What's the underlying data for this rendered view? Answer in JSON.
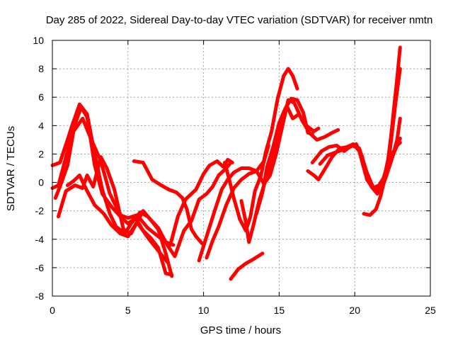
{
  "chart_data": {
    "type": "scatter",
    "title": "Day 285 of 2022, Sidereal Day-to-day VTEC variation (SDTVAR) for receiver nmtn",
    "xlabel": "GPS time / hours",
    "ylabel": "SDTVAR / TECUs",
    "xlim": [
      0,
      25
    ],
    "ylim": [
      -8,
      10
    ],
    "x_ticks": [
      "0",
      "5",
      "10",
      "15",
      "20",
      "25"
    ],
    "y_ticks": [
      "-8",
      "-6",
      "-4",
      "-2",
      "0",
      "2",
      "4",
      "6",
      "8",
      "10"
    ],
    "grid": true,
    "marker": "+",
    "color": "#ff0000",
    "series": [
      {
        "name": "s1",
        "points": [
          [
            0,
            1.2
          ],
          [
            0.5,
            1.4
          ],
          [
            1.0,
            3.0
          ],
          [
            1.3,
            4.0
          ],
          [
            1.8,
            5.5
          ],
          [
            2.3,
            4.8
          ],
          [
            2.8,
            2.0
          ],
          [
            3.3,
            -0.5
          ],
          [
            3.8,
            -2.2
          ],
          [
            4.2,
            -3.1
          ],
          [
            4.8,
            -3.6
          ],
          [
            5.2,
            -2.9
          ],
          [
            5.8,
            -2.1
          ],
          [
            6.3,
            -2.4
          ],
          [
            7.0,
            -3.2
          ],
          [
            7.6,
            -4.4
          ],
          [
            8.1,
            -5.2
          ],
          [
            8.7,
            -3.4
          ],
          [
            9.2,
            -2.7
          ],
          [
            9.7,
            -1.2
          ],
          [
            10.2,
            -0.8
          ],
          [
            10.6,
            -0.3
          ],
          [
            11.0,
            0.5
          ],
          [
            11.5,
            1.0
          ],
          [
            11.8,
            1.4
          ]
        ]
      },
      {
        "name": "s2",
        "points": [
          [
            0,
            -0.4
          ],
          [
            0.4,
            -0.2
          ],
          [
            0.9,
            1.8
          ],
          [
            1.4,
            3.8
          ],
          [
            1.9,
            5.3
          ],
          [
            2.3,
            4.6
          ],
          [
            2.8,
            1.2
          ],
          [
            3.3,
            -0.8
          ],
          [
            3.9,
            -1.7
          ],
          [
            4.5,
            -2.4
          ],
          [
            5.0,
            -2.9
          ],
          [
            5.5,
            -2.5
          ],
          [
            6.0,
            -3.4
          ],
          [
            6.5,
            -3.9
          ],
          [
            7.0,
            -4.6
          ],
          [
            7.5,
            -6.4
          ],
          [
            7.9,
            -6.5
          ]
        ]
      },
      {
        "name": "s3",
        "points": [
          [
            0.2,
            -1.1
          ],
          [
            0.5,
            -0.3
          ],
          [
            1.0,
            1.2
          ],
          [
            1.4,
            3.6
          ],
          [
            2.0,
            4.5
          ],
          [
            2.5,
            3.2
          ],
          [
            3.2,
            1.5
          ],
          [
            3.8,
            -0.8
          ],
          [
            4.5,
            -2.3
          ],
          [
            5.0,
            -2.5
          ],
          [
            5.6,
            -2.3
          ],
          [
            6.3,
            -3.2
          ],
          [
            7.0,
            -3.8
          ],
          [
            7.5,
            -4.2
          ],
          [
            8.0,
            -4.4
          ]
        ]
      },
      {
        "name": "s4",
        "points": [
          [
            0.4,
            -2.4
          ],
          [
            0.9,
            -0.6
          ],
          [
            1.5,
            -0.2
          ],
          [
            2.0,
            -0.4
          ],
          [
            2.3,
            0.5
          ],
          [
            2.7,
            -0.3
          ],
          [
            3.2,
            1.8
          ],
          [
            3.6,
            1.0
          ],
          [
            4.1,
            -0.5
          ],
          [
            4.7,
            -3.3
          ],
          [
            5.2,
            -3.6
          ],
          [
            5.5,
            -3.0
          ],
          [
            6.0,
            -2.0
          ],
          [
            6.4,
            -2.5
          ],
          [
            7.0,
            -3.3
          ],
          [
            7.5,
            -5.0
          ],
          [
            7.9,
            -6.6
          ]
        ]
      },
      {
        "name": "s5",
        "points": [
          [
            1.0,
            -0.2
          ],
          [
            1.4,
            0.1
          ],
          [
            1.8,
            0.5
          ],
          [
            2.3,
            -0.6
          ],
          [
            2.8,
            -1.6
          ],
          [
            3.4,
            -2.2
          ],
          [
            3.9,
            -3.0
          ],
          [
            4.5,
            -3.6
          ],
          [
            5.0,
            -3.8
          ],
          [
            5.6,
            -2.8
          ],
          [
            6.4,
            -4.0
          ],
          [
            7.0,
            -4.8
          ],
          [
            7.6,
            -5.6
          ]
        ]
      },
      {
        "name": "s6",
        "points": [
          [
            5.4,
            1.5
          ],
          [
            6.0,
            1.4
          ],
          [
            6.6,
            0.2
          ],
          [
            7.2,
            -0.2
          ],
          [
            7.7,
            -0.5
          ],
          [
            8.2,
            -0.7
          ],
          [
            8.6,
            -1.1
          ],
          [
            8.9,
            -1.9
          ],
          [
            9.2,
            -3.3
          ],
          [
            9.5,
            -3.8
          ],
          [
            9.9,
            -4.3
          ]
        ]
      },
      {
        "name": "s7",
        "points": [
          [
            7.8,
            -4.4
          ],
          [
            8.3,
            -2.4
          ],
          [
            8.8,
            -1.2
          ],
          [
            9.5,
            -0.5
          ],
          [
            10.0,
            0.6
          ],
          [
            10.4,
            1.2
          ],
          [
            10.9,
            1.5
          ],
          [
            11.3,
            1.1
          ],
          [
            11.6,
            1.6
          ],
          [
            11.9,
            1.4
          ]
        ]
      },
      {
        "name": "s8",
        "points": [
          [
            9.7,
            -5.5
          ],
          [
            10.2,
            -3.8
          ],
          [
            10.7,
            -2.1
          ],
          [
            11.2,
            -0.5
          ],
          [
            11.6,
            0.2
          ],
          [
            12.0,
            0.7
          ],
          [
            12.5,
            1.0
          ],
          [
            13.0,
            1.0
          ],
          [
            13.5,
            0.8
          ],
          [
            14.0,
            1.5
          ],
          [
            14.3,
            2.6
          ]
        ]
      },
      {
        "name": "s9",
        "points": [
          [
            10.2,
            -5.3
          ],
          [
            10.6,
            -4.1
          ],
          [
            11.0,
            -3.1
          ],
          [
            11.5,
            -1.6
          ],
          [
            12.0,
            -0.4
          ],
          [
            12.5,
            0.2
          ],
          [
            13.0,
            0.6
          ],
          [
            13.5,
            0.8
          ],
          [
            14.0,
            -0.1
          ],
          [
            14.4,
            0.5
          ],
          [
            14.8,
            2.0
          ],
          [
            15.2,
            3.9
          ],
          [
            15.6,
            5.8
          ],
          [
            16.0,
            5.6
          ],
          [
            16.5,
            4.4
          ],
          [
            17.0,
            3.5
          ],
          [
            17.5,
            3.0
          ],
          [
            18.0,
            3.2
          ],
          [
            18.5,
            3.5
          ],
          [
            18.9,
            3.7
          ]
        ]
      },
      {
        "name": "s10",
        "points": [
          [
            11.4,
            1.4
          ],
          [
            11.7,
            0.2
          ],
          [
            12.0,
            -1.1
          ],
          [
            12.4,
            -2.6
          ],
          [
            12.8,
            -3.4
          ],
          [
            13.1,
            -2.4
          ],
          [
            13.4,
            -0.6
          ],
          [
            13.8,
            0.5
          ],
          [
            14.1,
            2.1
          ],
          [
            14.5,
            3.6
          ],
          [
            14.9,
            5.9
          ],
          [
            15.3,
            7.5
          ],
          [
            15.6,
            8.0
          ],
          [
            15.9,
            7.5
          ],
          [
            16.2,
            6.6
          ]
        ]
      },
      {
        "name": "s11",
        "points": [
          [
            11.8,
            -6.8
          ],
          [
            12.3,
            -6.1
          ],
          [
            12.8,
            -5.7
          ],
          [
            13.3,
            -5.4
          ],
          [
            13.6,
            -5.2
          ],
          [
            13.9,
            -5.0
          ]
        ]
      },
      {
        "name": "s12",
        "points": [
          [
            12.5,
            -1.3
          ],
          [
            12.8,
            -2.8
          ],
          [
            13.0,
            -4.2
          ],
          [
            13.3,
            -3.0
          ],
          [
            13.7,
            -1.2
          ],
          [
            14.0,
            -0.2
          ],
          [
            14.4,
            1.1
          ],
          [
            14.8,
            2.9
          ],
          [
            15.1,
            4.2
          ],
          [
            15.5,
            5.4
          ],
          [
            15.9,
            4.5
          ],
          [
            16.3,
            4.8
          ],
          [
            16.8,
            4.0
          ],
          [
            17.3,
            3.6
          ],
          [
            17.6,
            3.8
          ]
        ]
      },
      {
        "name": "s13",
        "points": [
          [
            13.5,
            -2.2
          ],
          [
            13.9,
            -0.7
          ],
          [
            14.2,
            1.1
          ],
          [
            14.6,
            2.5
          ],
          [
            15.0,
            4.2
          ],
          [
            15.4,
            5.2
          ],
          [
            15.8,
            5.9
          ],
          [
            16.2,
            5.8
          ],
          [
            16.6,
            4.9
          ],
          [
            16.9,
            3.5
          ],
          [
            17.2,
            3.4
          ]
        ]
      },
      {
        "name": "s14",
        "points": [
          [
            17.2,
            1.4
          ],
          [
            17.8,
            2.2
          ],
          [
            18.3,
            2.5
          ],
          [
            18.8,
            2.6
          ],
          [
            19.3,
            2.2
          ],
          [
            19.8,
            2.6
          ],
          [
            20.3,
            2.4
          ],
          [
            20.8,
            0.7
          ],
          [
            21.2,
            -0.3
          ],
          [
            21.6,
            -0.5
          ],
          [
            22.0,
            0.2
          ],
          [
            22.4,
            1.6
          ],
          [
            22.8,
            2.6
          ],
          [
            23.0,
            2.8
          ]
        ]
      },
      {
        "name": "s15",
        "points": [
          [
            17.7,
            1.3
          ],
          [
            18.2,
            1.9
          ],
          [
            18.7,
            2.1
          ],
          [
            19.2,
            2.3
          ],
          [
            19.7,
            2.5
          ],
          [
            20.1,
            2.7
          ],
          [
            20.5,
            1.8
          ],
          [
            20.8,
            0.2
          ],
          [
            21.2,
            -0.4
          ],
          [
            21.6,
            -0.2
          ],
          [
            21.9,
            0.3
          ],
          [
            22.3,
            1.7
          ],
          [
            22.7,
            2.4
          ],
          [
            23.0,
            3.1
          ]
        ]
      },
      {
        "name": "s16",
        "points": [
          [
            16.9,
            0.8
          ],
          [
            17.3,
            0.5
          ],
          [
            17.6,
            0.2
          ],
          [
            18.0,
            0.9
          ],
          [
            18.5,
            1.8
          ],
          [
            19.0,
            2.4
          ],
          [
            19.5,
            2.5
          ],
          [
            19.9,
            2.7
          ],
          [
            20.3,
            2.2
          ],
          [
            20.7,
            0.6
          ],
          [
            21.1,
            -0.3
          ],
          [
            21.5,
            -0.8
          ],
          [
            21.8,
            -0.4
          ],
          [
            22.1,
            0.5
          ],
          [
            22.5,
            1.8
          ],
          [
            22.8,
            3.0
          ],
          [
            23.0,
            4.5
          ]
        ]
      },
      {
        "name": "s17",
        "points": [
          [
            20.6,
            -2.2
          ],
          [
            21.0,
            -2.3
          ],
          [
            21.4,
            -1.9
          ],
          [
            21.7,
            -1.0
          ],
          [
            22.0,
            0.3
          ],
          [
            22.3,
            2.0
          ],
          [
            22.5,
            3.8
          ],
          [
            22.7,
            5.6
          ],
          [
            22.9,
            7.2
          ],
          [
            23.0,
            8.0
          ]
        ]
      },
      {
        "name": "s18",
        "points": [
          [
            21.5,
            -0.7
          ],
          [
            21.8,
            -0.2
          ],
          [
            22.0,
            0.6
          ],
          [
            22.2,
            1.6
          ],
          [
            22.4,
            3.3
          ],
          [
            22.6,
            5.3
          ],
          [
            22.8,
            7.3
          ],
          [
            22.9,
            8.4
          ],
          [
            23.0,
            9.5
          ]
        ]
      }
    ]
  }
}
